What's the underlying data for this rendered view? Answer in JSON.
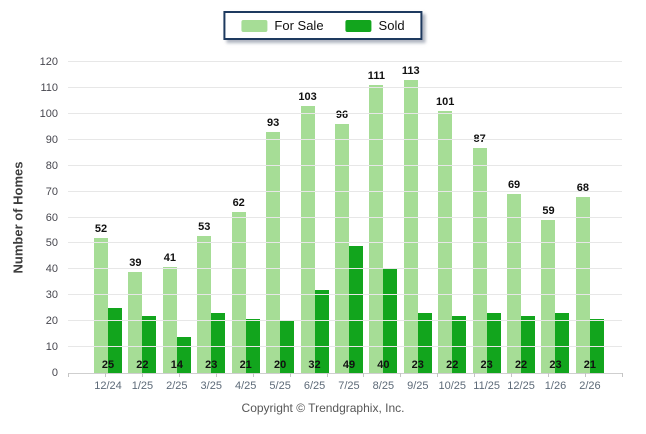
{
  "chart_data": {
    "type": "bar",
    "title": "",
    "categories": [
      "12/24",
      "1/25",
      "2/25",
      "3/25",
      "4/25",
      "5/25",
      "6/25",
      "7/25",
      "8/25",
      "9/25",
      "10/25",
      "11/25",
      "12/25",
      "1/26",
      "2/26"
    ],
    "series": [
      {
        "name": "For Sale",
        "color": "#A6DD96",
        "values": [
          52,
          39,
          41,
          53,
          62,
          93,
          103,
          96,
          111,
          113,
          101,
          87,
          69,
          59,
          68
        ]
      },
      {
        "name": "Sold",
        "color": "#12A51D",
        "values": [
          25,
          22,
          14,
          23,
          21,
          20,
          32,
          49,
          40,
          23,
          22,
          23,
          22,
          23,
          21
        ]
      }
    ],
    "xlabel": "",
    "ylabel": "Number of Homes",
    "ylim": [
      0,
      120
    ],
    "ystep": 10,
    "grid": true,
    "legend_position": "top",
    "value_labels": {
      "for_sale": "above bar",
      "sold": "inside bar bottom"
    }
  },
  "legend": {
    "items": [
      {
        "label": "For Sale"
      },
      {
        "label": "Sold"
      }
    ],
    "border_color": "#1e3a5f"
  },
  "footer": {
    "copyright": "Copyright © Trendgraphix, Inc."
  }
}
